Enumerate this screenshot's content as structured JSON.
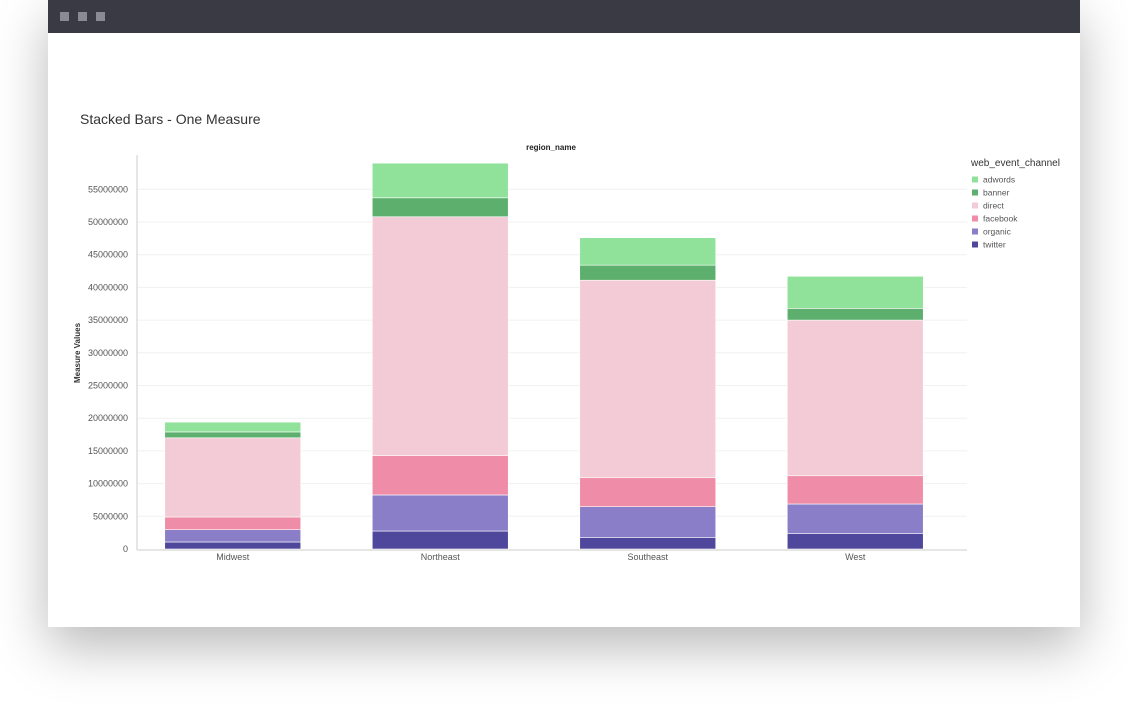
{
  "window": {
    "controls": [
      "window-button-1",
      "window-button-2",
      "window-button-3"
    ]
  },
  "card": {
    "title": "Stacked Bars - One Measure"
  },
  "chart_data": {
    "type": "bar",
    "stacked": true,
    "title": "region_name",
    "xlabel": "",
    "ylabel": "Measure Values",
    "categories": [
      "Midwest",
      "Northeast",
      "Southeast",
      "West"
    ],
    "ylim": [
      0,
      60000000
    ],
    "yticks": [
      "0",
      "5000000",
      "10000000",
      "15000000",
      "20000000",
      "25000000",
      "30000000",
      "35000000",
      "40000000",
      "45000000",
      "50000000",
      "55000000"
    ],
    "grid": true,
    "legend_title": "web_event_channel",
    "legend_position": "right",
    "series": [
      {
        "name": "twitter",
        "color": "#4f479c",
        "values": [
          1070000,
          2750000,
          1730000,
          2340000
        ]
      },
      {
        "name": "organic",
        "color": "#8a7ec8",
        "values": [
          1880000,
          5510000,
          4740000,
          4540000
        ]
      },
      {
        "name": "facebook",
        "color": "#ef8ca7",
        "values": [
          1950000,
          6040000,
          4430000,
          4320000
        ]
      },
      {
        "name": "direct",
        "color": "#f3cbd6",
        "values": [
          12100000,
          36500000,
          30200000,
          23800000
        ]
      },
      {
        "name": "banner",
        "color": "#5daf6d",
        "values": [
          900000,
          2900000,
          2300000,
          1800000
        ]
      },
      {
        "name": "adwords",
        "color": "#90e29b",
        "values": [
          1500000,
          5300000,
          4200000,
          4900000
        ]
      }
    ],
    "legend_order": [
      "adwords",
      "banner",
      "direct",
      "facebook",
      "organic",
      "twitter"
    ]
  }
}
